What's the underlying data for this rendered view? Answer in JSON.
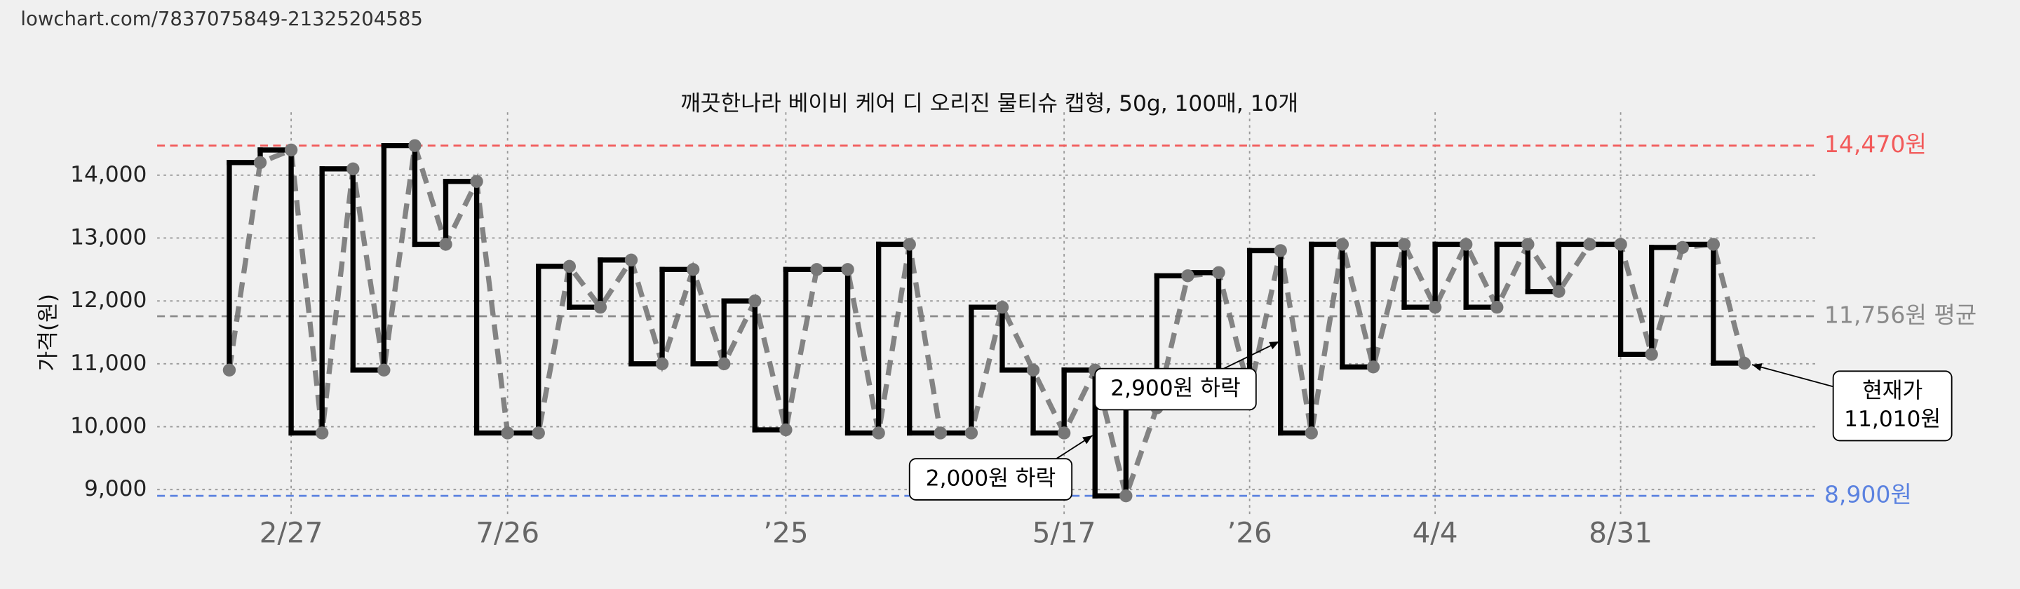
{
  "chart_data": {
    "type": "step",
    "source": "lowchart.com/7837075849-21325204585",
    "title": "깨끗한나라 베이비 케어 디 오리진 물티슈 캡형, 50g, 100매, 10개",
    "y_label": "가격(원)",
    "categories": [
      null,
      null,
      "2/27",
      null,
      null,
      null,
      null,
      null,
      null,
      "7/26",
      null,
      null,
      null,
      null,
      null,
      null,
      null,
      null,
      "’25",
      null,
      null,
      null,
      null,
      null,
      null,
      null,
      null,
      "5/17",
      null,
      null,
      null,
      null,
      null,
      "’26",
      null,
      null,
      null,
      null,
      null,
      "4/4",
      null,
      null,
      null,
      null,
      null,
      "8/31",
      null,
      null,
      null,
      null
    ],
    "series": [
      {
        "name": "가격",
        "color": "#000000",
        "dashed_color": "#777777",
        "values": [
          10900,
          14200,
          14400,
          9900,
          14100,
          10900,
          14470,
          12900,
          13900,
          9900,
          9900,
          12550,
          11900,
          12650,
          11000,
          12500,
          11000,
          12000,
          9950,
          12500,
          12500,
          9900,
          12900,
          9900,
          9900,
          11900,
          10900,
          9900,
          10900,
          8900,
          10300,
          12400,
          12450,
          10550,
          12800,
          9900,
          12900,
          10950,
          12900,
          11900,
          12900,
          11900,
          12900,
          12150,
          12900,
          12900,
          11150,
          12850,
          12900,
          11010
        ]
      }
    ],
    "ylim": [
      8600,
      15000
    ],
    "yticks": [
      {
        "value": 9000,
        "label": "9,000"
      },
      {
        "value": 10000,
        "label": "10,000"
      },
      {
        "value": 11000,
        "label": "11,000"
      },
      {
        "value": 12000,
        "label": "12,000"
      },
      {
        "value": 13000,
        "label": "13,000"
      },
      {
        "value": 14000,
        "label": "14,000"
      }
    ],
    "grid": true,
    "reference_lines": [
      {
        "value": 14470,
        "label": "14,470원",
        "color": "#f25a5a"
      },
      {
        "value": 11756,
        "label": "11,756원 평균",
        "color": "#8a8a8a"
      },
      {
        "value": 8900,
        "label": "8,900원",
        "color": "#5b82e0"
      }
    ],
    "annotations": [
      {
        "lines": [
          "현재가",
          "11,010원"
        ]
      },
      {
        "lines": [
          "2,900원 하락"
        ]
      },
      {
        "lines": [
          "2,000원 하락"
        ]
      }
    ]
  }
}
